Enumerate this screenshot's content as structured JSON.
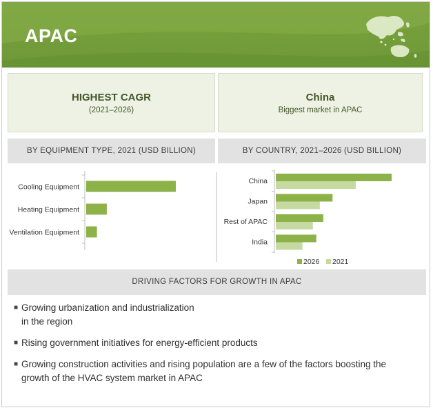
{
  "header": {
    "title": "APAC"
  },
  "cards": {
    "left": {
      "main": "HIGHEST CAGR",
      "sub": "(2021–2026)"
    },
    "right": {
      "main": "China",
      "sub": "Biggest market in APAC"
    }
  },
  "sections": {
    "equipment": "BY EQUIPMENT TYPE, 2021 (USD BILLION)",
    "country": "BY COUNTRY, 2021–2026 (USD BILLION)",
    "drivers": "DRIVING FACTORS FOR GROWTH IN APAC"
  },
  "colors": {
    "dark_bar": "#8db24a",
    "light_bar": "#c5d9a0",
    "header": "#7aa33e",
    "card_bg": "#eef2e4"
  },
  "chart_data": [
    {
      "type": "bar",
      "orientation": "horizontal",
      "categories": [
        "Cooling Equipment",
        "Heating Equipment",
        "Ventilation Equipment"
      ],
      "values": [
        100,
        23,
        12
      ],
      "title": "BY EQUIPMENT TYPE, 2021 (USD BILLION)",
      "xlabel": "",
      "ylabel": "",
      "xlim": [
        0,
        100
      ]
    },
    {
      "type": "bar",
      "orientation": "horizontal",
      "categories": [
        "China",
        "Japan",
        "Rest of APAC",
        "India"
      ],
      "series": [
        {
          "name": "2026",
          "values": [
            100,
            49,
            41,
            35
          ],
          "color": "#8db24a"
        },
        {
          "name": "2021",
          "values": [
            69,
            38,
            32,
            23
          ],
          "color": "#c5d9a0"
        }
      ],
      "title": "BY COUNTRY, 2021–2026 (USD BILLION)",
      "legend": "bottom-right",
      "xlim": [
        0,
        100
      ]
    }
  ],
  "bullets": [
    {
      "lines": [
        "Growing urbanization and industrialization",
        "in the region"
      ]
    },
    {
      "lines": [
        "Rising government initiatives for energy-efficient products"
      ]
    },
    {
      "lines": [
        "Growing construction activities and rising population are a few of the factors boosting the",
        "growth of the HVAC system market in APAC"
      ]
    }
  ]
}
